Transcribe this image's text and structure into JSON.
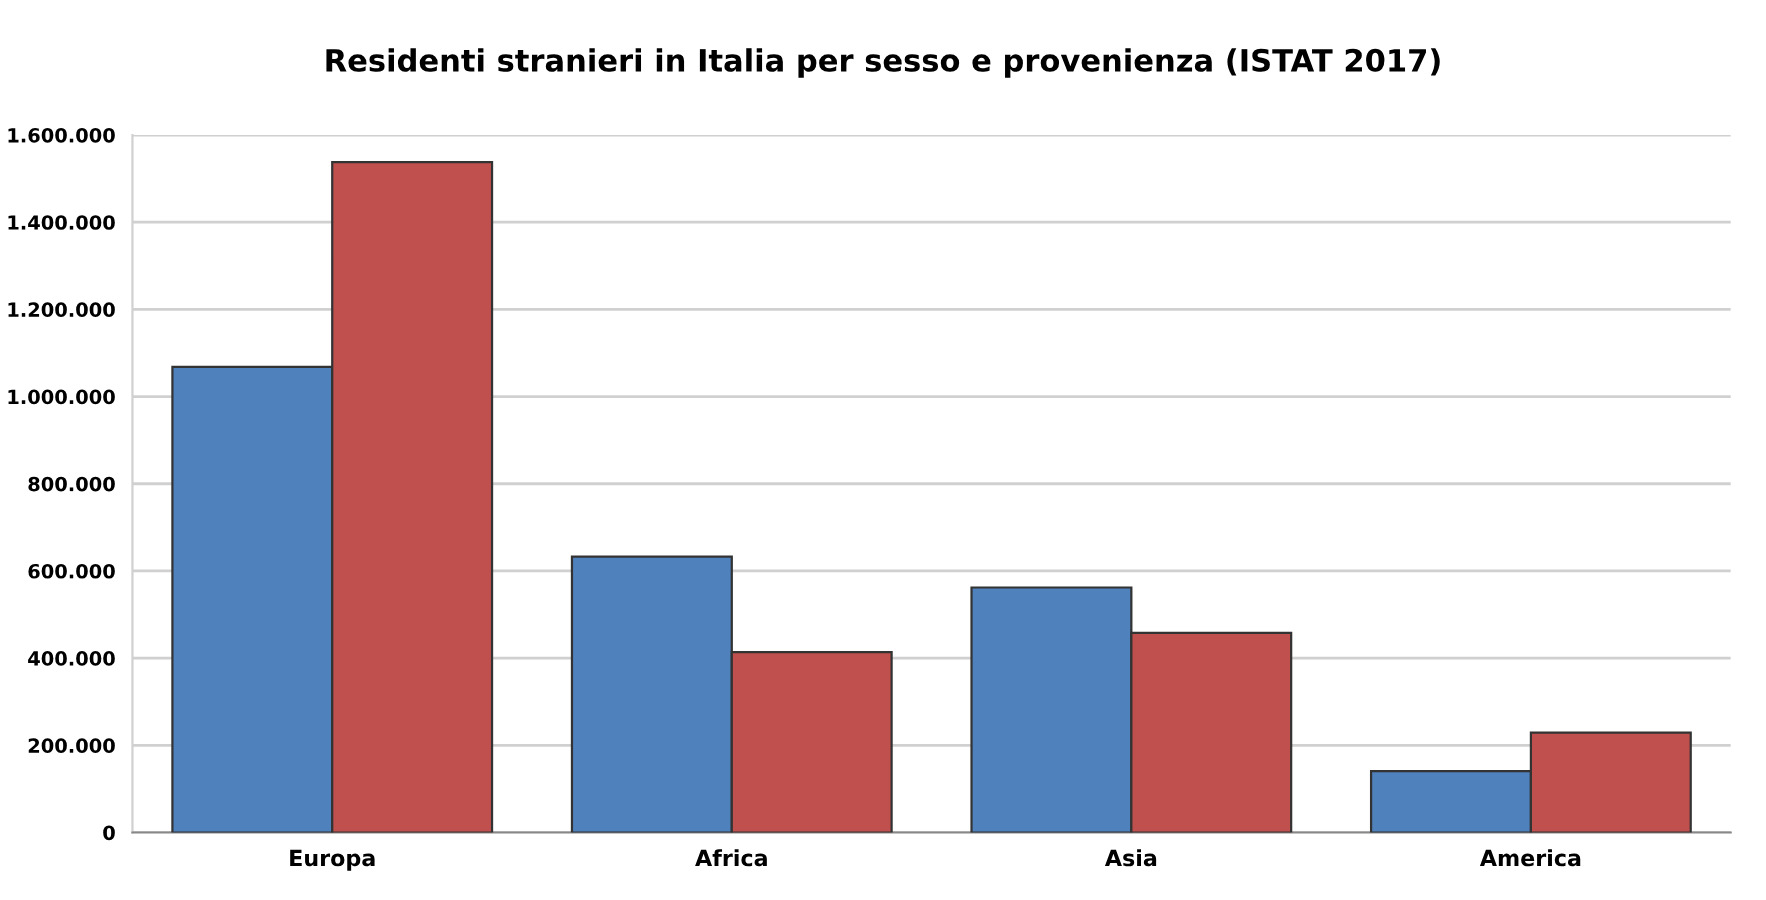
{
  "chart_data": {
    "type": "bar",
    "title": "Residenti stranieri in Italia per sesso e provenienza (ISTAT 2017)",
    "categories": [
      "Europa",
      "Africa",
      "Asia",
      "America"
    ],
    "series": [
      {
        "color": "#4f81bd",
        "values": [
          1068000,
          633000,
          562000,
          141000
        ]
      },
      {
        "color": "#c0504d",
        "values": [
          1538000,
          414000,
          458000,
          229000
        ]
      }
    ],
    "ylim": [
      0,
      1600000
    ],
    "yticks": [
      {
        "value": 0,
        "label": "0"
      },
      {
        "value": 200000,
        "label": "200.000"
      },
      {
        "value": 400000,
        "label": "400.000"
      },
      {
        "value": 600000,
        "label": "600.000"
      },
      {
        "value": 800000,
        "label": "800.000"
      },
      {
        "value": 1000000,
        "label": "1.000.000"
      },
      {
        "value": 1200000,
        "label": "1.200.000"
      },
      {
        "value": 1400000,
        "label": "1.400.000"
      },
      {
        "value": 1600000,
        "label": "1.600.000"
      }
    ],
    "grid": "y"
  }
}
